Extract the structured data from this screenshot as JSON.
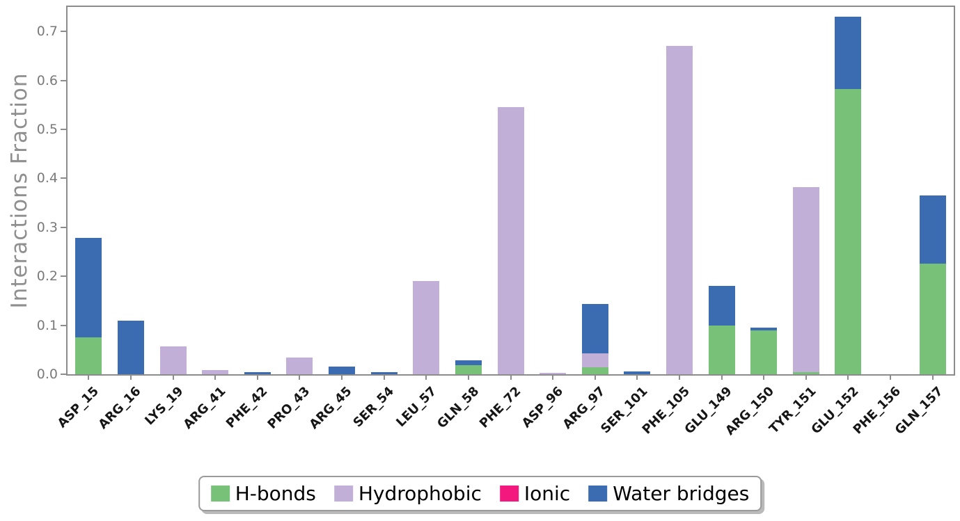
{
  "chart_data": {
    "type": "bar",
    "stacked": true,
    "title": "",
    "xlabel": "",
    "ylabel": "Interactions Fraction",
    "ylim": [
      0,
      0.75
    ],
    "yticks": [
      0.0,
      0.1,
      0.2,
      0.3,
      0.4,
      0.5,
      0.6,
      0.7
    ],
    "grid": false,
    "legend_position": "bottom-center",
    "spine_color": "#8c8c8c",
    "categories": [
      "ASP_15",
      "ARG_16",
      "LYS_19",
      "ARG_41",
      "PHE_42",
      "PRO_43",
      "ARG_45",
      "SER_54",
      "LEU_57",
      "GLN_58",
      "PHE_72",
      "ASP_96",
      "ARG_97",
      "SER_101",
      "PHE_105",
      "GLU_149",
      "ARG_150",
      "TYR_151",
      "GLU_152",
      "PHE_156",
      "GLN_157"
    ],
    "series": [
      {
        "name": "H-bonds",
        "color": "#77c179",
        "values": [
          0.075,
          0,
          0,
          0,
          0,
          0,
          0,
          0,
          0,
          0.018,
          0,
          0,
          0.014,
          0,
          0,
          0.1,
          0.09,
          0.004,
          0.582,
          0,
          0.226
        ]
      },
      {
        "name": "Hydrophobic",
        "color": "#c2afd8",
        "values": [
          0,
          0,
          0.057,
          0.008,
          0,
          0.034,
          0,
          0,
          0.19,
          0,
          0.545,
          0.003,
          0.028,
          0,
          0.67,
          0,
          0,
          0.378,
          0,
          0,
          0
        ]
      },
      {
        "name": "Ionic",
        "color": "#f2187d",
        "values": [
          0,
          0,
          0,
          0,
          0,
          0,
          0,
          0,
          0,
          0,
          0,
          0,
          0,
          0,
          0,
          0,
          0,
          0,
          0,
          0,
          0
        ]
      },
      {
        "name": "Water bridges",
        "color": "#3b6bb0",
        "values": [
          0.203,
          0.11,
          0,
          0,
          0.004,
          0,
          0.015,
          0.004,
          0,
          0.01,
          0,
          0,
          0.102,
          0.005,
          0,
          0.081,
          0.005,
          0,
          0.148,
          0,
          0.139
        ]
      }
    ]
  }
}
